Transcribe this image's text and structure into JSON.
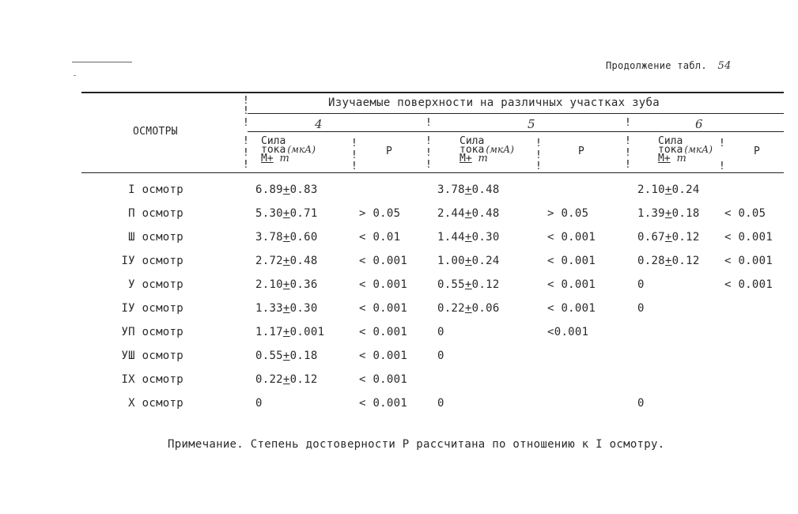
{
  "header": {
    "continuation": "Продолжение табл.",
    "table_number": "54"
  },
  "table": {
    "col_label": "ОСМОТРЫ",
    "group_title": "Изучаемые поверхности на различных участках зуба",
    "sections": [
      "4",
      "5",
      "6"
    ],
    "sub_current_line1": "Сила",
    "sub_current_line2": "тока",
    "sub_unit": "(мкА)",
    "sub_m_plus": "M+",
    "sub_m_small": "m",
    "sub_p": "P",
    "rows": [
      {
        "label": "I осмотр",
        "c4": "6.89±0.83",
        "p4": "",
        "c5": "3.78±0.48",
        "p5": "",
        "c6": "2.10±0.24",
        "p6": ""
      },
      {
        "label": "П осмотр",
        "c4": "5.30±0.71",
        "p4": "> 0.05",
        "c5": "2.44±0.48",
        "p5": "> 0.05",
        "c6": "1.39±0.18",
        "p6": "< 0.05"
      },
      {
        "label": "Ш осмотр",
        "c4": "3.78±0.60",
        "p4": "< 0.01",
        "c5": "1.44±0.30",
        "p5": "< 0.001",
        "c6": "0.67±0.12",
        "p6": "< 0.001"
      },
      {
        "label": "IУ осмотр",
        "c4": "2.72±0.48",
        "p4": "< 0.001",
        "c5": "1.00±0.24",
        "p5": "< 0.001",
        "c6": "0.28±0.12",
        "p6": "< 0.001"
      },
      {
        "label": "У осмотр",
        "c4": "2.10±0.36",
        "p4": "< 0.001",
        "c5": "0.55±0.12",
        "p5": "< 0.001",
        "c6": "0",
        "p6": "< 0.001"
      },
      {
        "label": "IУ осмотр",
        "c4": "1.33±0.30",
        "p4": "< 0.001",
        "c5": "0.22±0.06",
        "p5": "< 0.001",
        "c6": "0",
        "p6": ""
      },
      {
        "label": "УП осмотр",
        "c4": "1.17±0.001",
        "p4": "< 0.001",
        "c5": "0",
        "p5": "<0.001",
        "c6": "",
        "p6": ""
      },
      {
        "label": "УШ осмотр",
        "c4": "0.55±0.18",
        "p4": "< 0.001",
        "c5": "0",
        "p5": "",
        "c6": "",
        "p6": ""
      },
      {
        "label": "IX осмотр",
        "c4": "0.22±0.12",
        "p4": "< 0.001",
        "c5": "",
        "p5": "",
        "c6": "",
        "p6": ""
      },
      {
        "label": "X осмотр",
        "c4": "0",
        "p4": "< 0.001",
        "c5": "0",
        "p5": "",
        "c6": "0",
        "p6": ""
      }
    ]
  },
  "note": "Примечание. Степень достоверности P рассчитана по отношению к I осмотру."
}
